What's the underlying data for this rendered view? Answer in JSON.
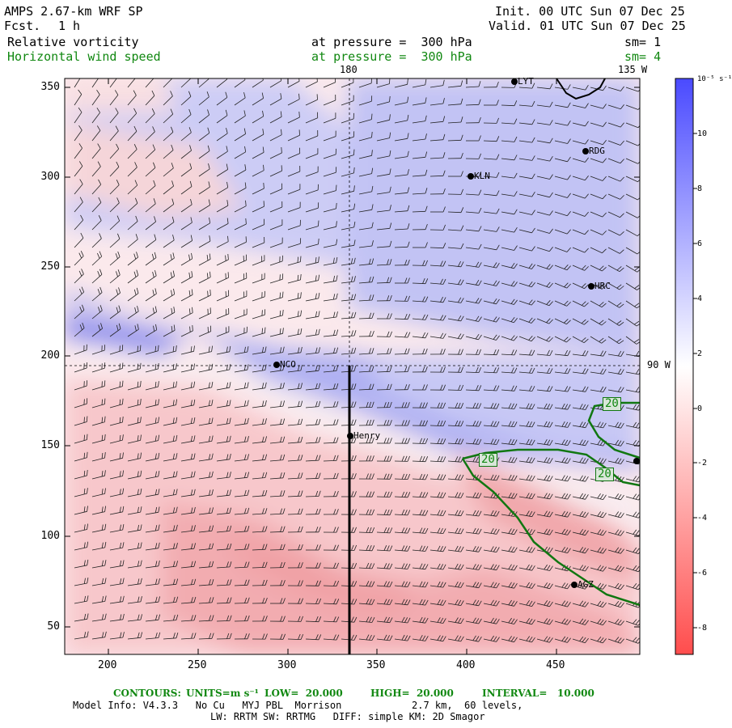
{
  "header": {
    "model": "AMPS 2.67-km WRF SP",
    "fcst_label": "Fcst.",
    "fcst_value": "1 h",
    "init": "Init. 00 UTC Sun 07 Dec 25",
    "valid": "Valid. 01 UTC Sun 07 Dec 25",
    "field1": "Relative vorticity",
    "field1_level": "at pressure =  300 hPa",
    "field1_sm": "sm= 1",
    "field2": "Horizontal wind speed",
    "field2_level": "at pressure =  300 hPa",
    "field2_sm": "sm= 4"
  },
  "map": {
    "x_ticks": [
      "200",
      "250",
      "300",
      "350",
      "400",
      "450"
    ],
    "y_ticks": [
      "50",
      "100",
      "150",
      "200",
      "250",
      "300",
      "350"
    ],
    "lon_label_top": "180",
    "lon_label_top_right": "135 W",
    "lon_label_right": "90 W",
    "stations": [
      {
        "name": "LYT"
      },
      {
        "name": "RDG"
      },
      {
        "name": "KLN"
      },
      {
        "name": "HRC"
      },
      {
        "name": "NCO"
      },
      {
        "name": "Henry"
      },
      {
        "name": "AGZ"
      }
    ],
    "contour_labels": [
      "20",
      "20",
      "20"
    ],
    "contour_color": "#117711"
  },
  "colorbar": {
    "unit": "10⁻⁵ s⁻¹",
    "labels": [
      "10",
      "8",
      "6",
      "4",
      "2",
      "0",
      "-2",
      "-4",
      "-6",
      "-8"
    ],
    "pos_color": "#4d4dff",
    "neg_color": "#ff4d4d"
  },
  "footer": {
    "contours_label": "CONTOURS:",
    "units_label": "UNITS=m s⁻¹",
    "low": "LOW=  20.000",
    "high": "HIGH=  20.000",
    "interval": "INTERVAL=   10.000",
    "info1": "Model Info: V4.3.3   No Cu   MYJ PBL  Morrison            2.7 km,  60 levels,",
    "info2": "LW: RRTM SW: RRTMG   DIFF: simple KM: 2D Smagor"
  }
}
